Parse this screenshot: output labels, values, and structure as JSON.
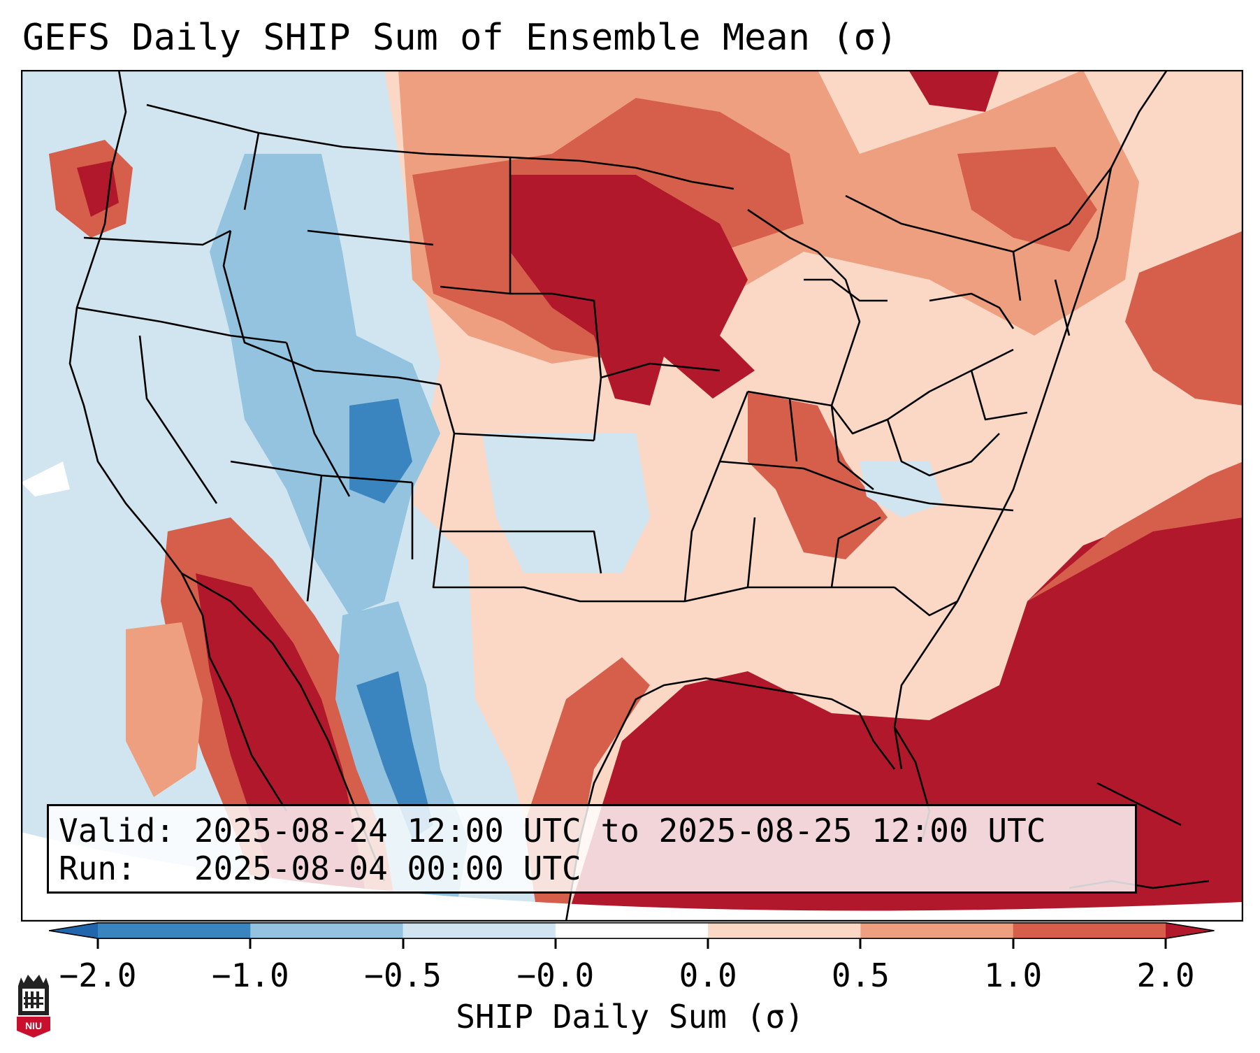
{
  "title": "GEFS Daily SHIP Sum of Ensemble Mean (σ)",
  "info_box": {
    "valid_line": "Valid: 2025-08-24 12:00 UTC to 2025-08-25 12:00 UTC",
    "run_line": "Run:   2025-08-04 00:00 UTC"
  },
  "colorbar": {
    "label": "SHIP Daily Sum (σ)",
    "ticks": [
      "−2.0",
      "−1.0",
      "−0.5",
      "−0.0",
      "0.0",
      "0.5",
      "1.0",
      "2.0"
    ],
    "colors": [
      "#3a85bf",
      "#93c3df",
      "#d1e5f0",
      "#ffffff",
      "#fbd8c6",
      "#ee9f80",
      "#d65f4c",
      "#b2182b"
    ]
  },
  "legend_palette": {
    "strong_positive": "#b2182b",
    "moderate_positive": "#d65f4c",
    "weak_positive": "#ee9f80",
    "slight_positive": "#fbd8c6",
    "slight_negative": "#d1e5f0",
    "weak_negative": "#93c3df",
    "moderate_negative": "#3a85bf"
  },
  "logo": {
    "text": "NIU"
  }
}
